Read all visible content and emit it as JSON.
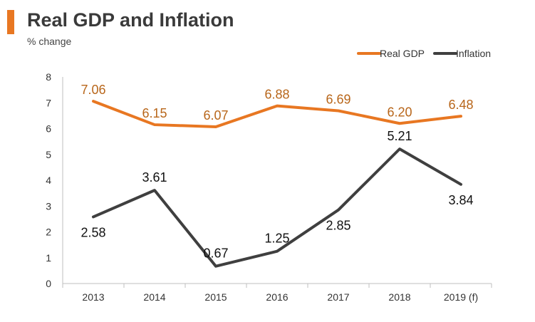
{
  "header": {
    "title": "Real GDP and Inflation",
    "subtitle": "% change"
  },
  "colors": {
    "accent": "#e87722",
    "gdp_line": "#e87722",
    "gdp_label": "#b8661a",
    "inflation_line": "#3f3f3f",
    "inflation_label": "#111111",
    "axis": "#bfbfbf"
  },
  "chart_data": {
    "type": "line",
    "title": "Real GDP and Inflation",
    "subtitle": "% change",
    "xlabel": "",
    "ylabel": "",
    "categories": [
      "2013",
      "2014",
      "2015",
      "2016",
      "2017",
      "2018",
      "2019 (f)"
    ],
    "ylim": [
      0,
      8
    ],
    "yticks": [
      "0",
      "1",
      "2",
      "3",
      "4",
      "5",
      "6",
      "7",
      "8"
    ],
    "grid": false,
    "legend_position": "top-right",
    "series": [
      {
        "name": "Real GDP",
        "values": [
          7.06,
          6.15,
          6.07,
          6.88,
          6.69,
          6.2,
          6.48
        ],
        "labels": [
          "7.06",
          "6.15",
          "6.07",
          "6.88",
          "6.69",
          "6.20",
          "6.48"
        ]
      },
      {
        "name": "Inflation",
        "values": [
          2.58,
          3.61,
          0.67,
          1.25,
          2.85,
          5.21,
          3.84
        ],
        "labels": [
          "2.58",
          "3.61",
          "0.67",
          "1.25",
          "2.85",
          "5.21",
          "3.84"
        ]
      }
    ]
  }
}
